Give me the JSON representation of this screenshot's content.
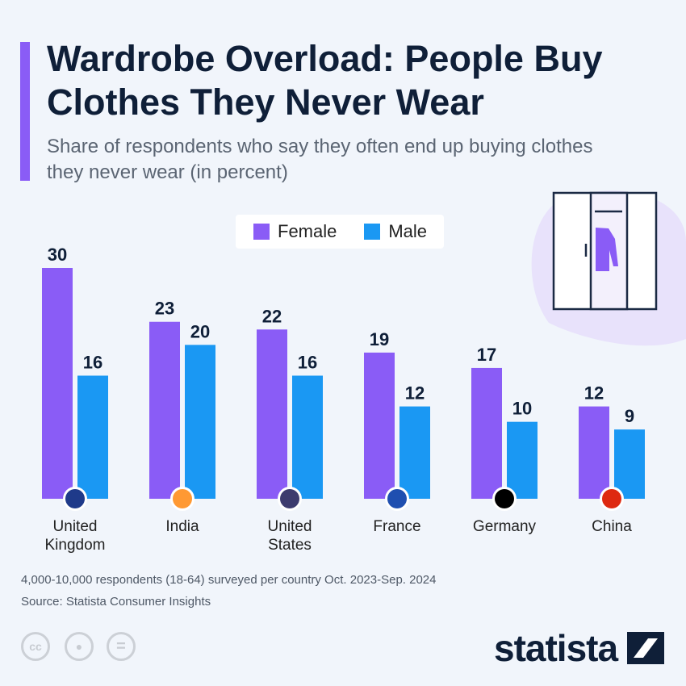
{
  "title": "Wardrobe Overload: People Buy Clothes They Never Wear",
  "subtitle": "Share of respondents who say they often end up buying clothes they never wear (in percent)",
  "colors": {
    "female": "#8a5cf6",
    "male": "#1a98f3",
    "text": "#0f1f38"
  },
  "chart_data": {
    "type": "bar",
    "categories": [
      "United Kingdom",
      "India",
      "United States",
      "France",
      "Germany",
      "China"
    ],
    "series": [
      {
        "name": "Female",
        "values": [
          30,
          23,
          22,
          19,
          17,
          12
        ]
      },
      {
        "name": "Male",
        "values": [
          16,
          20,
          16,
          12,
          10,
          9
        ]
      }
    ],
    "legend": "top-center",
    "grid": false,
    "ylim": [
      0,
      30
    ]
  },
  "legend": {
    "female": "Female",
    "male": "Male"
  },
  "labels": [
    [
      "United",
      "Kingdom"
    ],
    [
      "India"
    ],
    [
      "United",
      "States"
    ],
    [
      "France"
    ],
    [
      "Germany"
    ],
    [
      "China"
    ]
  ],
  "flags": [
    "uk-flag-icon",
    "india-flag-icon",
    "us-flag-icon",
    "france-flag-icon",
    "germany-flag-icon",
    "china-flag-icon"
  ],
  "footer": {
    "note": "4,000-10,000 respondents (18-64) surveyed per country Oct. 2023-Sep. 2024",
    "source": "Source: Statista Consumer Insights",
    "cc": "cc",
    "eq": "="
  },
  "logo": "statista"
}
